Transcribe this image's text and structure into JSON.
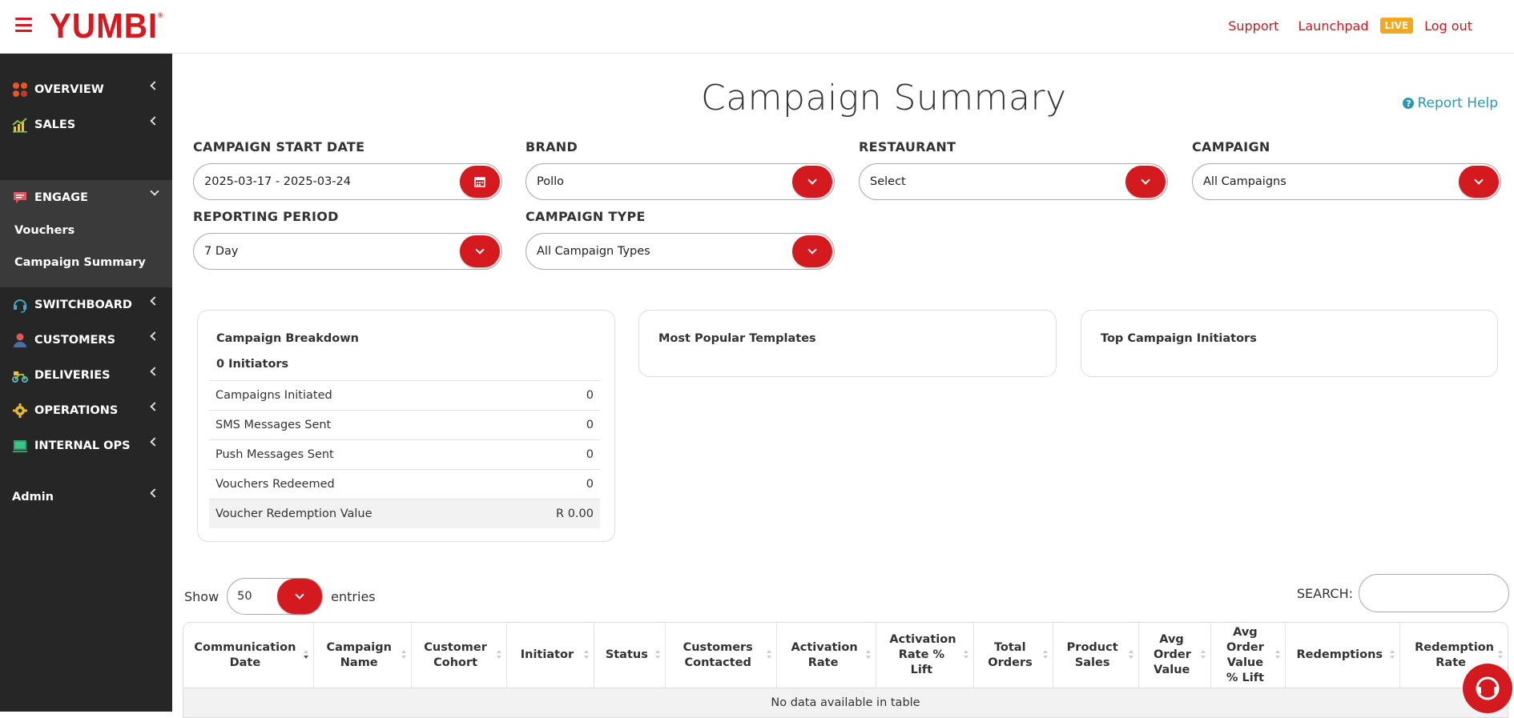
{
  "header": {
    "logo_text": "YUMBI",
    "logo_mark": "®",
    "links": {
      "support": "Support",
      "launchpad": "Launchpad",
      "live_badge": "LIVE",
      "logout": "Log out"
    }
  },
  "sidebar": {
    "items": [
      {
        "label": "OVERVIEW",
        "icon": "overview-dots-icon"
      },
      {
        "label": "SALES",
        "icon": "sales-chart-icon"
      },
      {
        "label": "ENGAGE",
        "icon": "chat-bubble-icon"
      },
      {
        "label": "SWITCHBOARD",
        "icon": "headset-icon"
      },
      {
        "label": "CUSTOMERS",
        "icon": "user-icon"
      },
      {
        "label": "DELIVERIES",
        "icon": "scooter-icon"
      },
      {
        "label": "OPERATIONS",
        "icon": "gear-icon"
      },
      {
        "label": "INTERNAL OPS",
        "icon": "monitor-icon"
      },
      {
        "label": "Admin",
        "icon": ""
      }
    ],
    "engage_sub": [
      "Vouchers",
      "Campaign Summary"
    ]
  },
  "page": {
    "title": "Campaign Summary",
    "report_help": "Report Help"
  },
  "filters": {
    "start_date": {
      "label": "CAMPAIGN START DATE",
      "value": "2025-03-17 - 2025-03-24"
    },
    "brand": {
      "label": "BRAND",
      "value": "Pollo"
    },
    "restaurant": {
      "label": "RESTAURANT",
      "value": "Select"
    },
    "campaign": {
      "label": "CAMPAIGN",
      "value": "All Campaigns"
    },
    "reporting_period": {
      "label": "REPORTING PERIOD",
      "value": "7 Day"
    },
    "campaign_type": {
      "label": "CAMPAIGN TYPE",
      "value": "All Campaign Types"
    }
  },
  "breakdown": {
    "title": "Campaign Breakdown",
    "initiators": "0 Initiators",
    "rows": [
      {
        "label": "Campaigns Initiated",
        "value": "0"
      },
      {
        "label": "SMS Messages Sent",
        "value": "0"
      },
      {
        "label": "Push Messages Sent",
        "value": "0"
      },
      {
        "label": "Vouchers Redeemed",
        "value": "0"
      },
      {
        "label": "Voucher Redemption Value",
        "value": "R 0.00"
      }
    ]
  },
  "cards": {
    "popular_templates": "Most Popular Templates",
    "top_initiators": "Top Campaign Initiators"
  },
  "table": {
    "show_label": "Show",
    "entries_value": "50",
    "entries_label": "entries",
    "search_label": "SEARCH:",
    "columns": [
      "Communication Date",
      "Campaign Name",
      "Customer Cohort",
      "Initiator",
      "Status",
      "Customers Contacted",
      "Activation Rate",
      "Activation Rate % Lift",
      "Total Orders",
      "Product Sales",
      "Avg Order Value",
      "Avg Order Value % Lift",
      "Redemptions",
      "Redemption Rate"
    ],
    "empty_message": "No data available in table"
  },
  "colors": {
    "brand_red": "#d7191f",
    "sidebar_bg": "#262626",
    "live": "#f5a623",
    "help": "#2a9ab0"
  }
}
